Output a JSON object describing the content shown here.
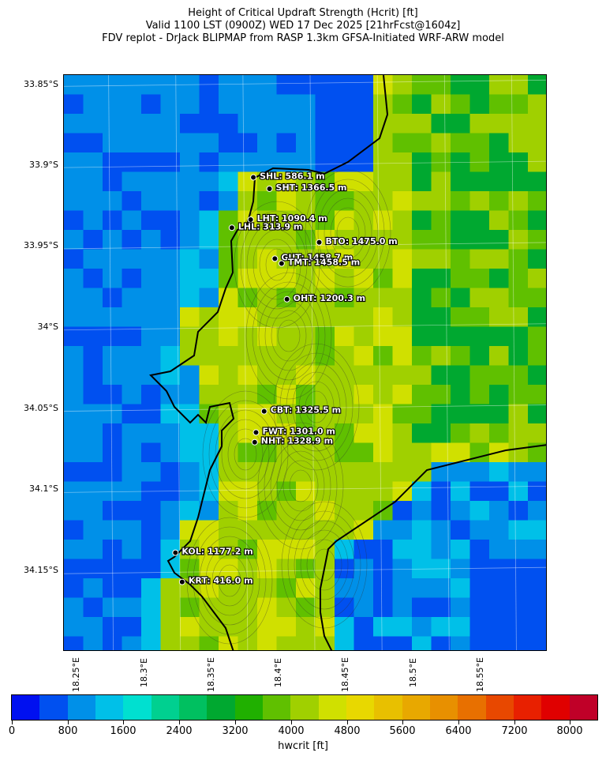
{
  "title": {
    "line1": "Height of Critical Updraft Strength (Hcrit) [ft]",
    "line2": "Valid 1100 LST (0900Z) WED 17 Dec 2025 [21hrFcst@1604z]",
    "line3": "FDV replot - DrJack BLIPMAP from RASP 1.3km GFSA-Initiated WRF-ARW model"
  },
  "axes": {
    "lat_labels": [
      "33.85°S",
      "33.9°S",
      "33.95°S",
      "34°S",
      "34.05°S",
      "34.1°S",
      "34.15°S"
    ],
    "lon_labels": [
      "18.25°E",
      "18.3°E",
      "18.35°E",
      "18.4°E",
      "18.45°E",
      "18.5°E",
      "18.55°E"
    ],
    "lat_range": [
      -34.2,
      -33.845
    ],
    "lon_range": [
      18.215,
      18.575
    ]
  },
  "stations": [
    {
      "code": "SHL",
      "value": "586.1 m",
      "label": "SHL: 586.1 m",
      "lat": -33.908,
      "lon": 18.356
    },
    {
      "code": "SHT",
      "value": "1366.5 m",
      "label": "SHT: 1366.5 m",
      "lat": -33.915,
      "lon": 18.368
    },
    {
      "code": "LHT",
      "value": "1090.4 m",
      "label": "LHT: 1090.4 m",
      "lat": -33.934,
      "lon": 18.354
    },
    {
      "code": "LHL",
      "value": "313.9 m",
      "label": "LHL: 313.9 m",
      "lat": -33.939,
      "lon": 18.34
    },
    {
      "code": "BTO",
      "value": "1475.0 m",
      "label": "BTO: 1475.0 m",
      "lat": -33.948,
      "lon": 18.405
    },
    {
      "code": "GUT",
      "value": "1458.7 m",
      "label": "GUT: 1458.7 m",
      "lat": -33.958,
      "lon": 18.372
    },
    {
      "code": "TMT",
      "value": "1458.5 m",
      "label": "TMT: 1458.5 m",
      "lat": -33.961,
      "lon": 18.377
    },
    {
      "code": "OHT",
      "value": "1200.3 m",
      "label": "OHT: 1200.3 m",
      "lat": -33.983,
      "lon": 18.381
    },
    {
      "code": "CBT",
      "value": "1325.5 m",
      "label": "CBT: 1325.5 m",
      "lat": -34.052,
      "lon": 18.364
    },
    {
      "code": "FWT",
      "value": "1301.0 m",
      "label": "FWT: 1301.0 m",
      "lat": -34.065,
      "lon": 18.358
    },
    {
      "code": "NHT",
      "value": "1328.9 m",
      "label": "NHT: 1328.9 m",
      "lat": -34.071,
      "lon": 18.357
    },
    {
      "code": "KOL",
      "value": "1177.2 m",
      "label": "KOL: 1177.2 m",
      "lat": -34.139,
      "lon": 18.298
    },
    {
      "code": "KRT",
      "value": "416.0 m",
      "label": "KRT: 416.0 m",
      "lat": -34.157,
      "lon": 18.303
    }
  ],
  "colorbar": {
    "label": "hwcrit [ft]",
    "tick_labels": [
      "0",
      "800",
      "1600",
      "2400",
      "3200",
      "4000",
      "4800",
      "5600",
      "6400",
      "7200",
      "8000"
    ],
    "min": 0,
    "max": 8400,
    "colors": [
      "#0010f0",
      "#0050f0",
      "#0090e8",
      "#00c0e8",
      "#00e0d0",
      "#00d090",
      "#00c060",
      "#00a830",
      "#20b000",
      "#60c000",
      "#a0d000",
      "#d0e000",
      "#e8d800",
      "#e8c000",
      "#e8a800",
      "#e89000",
      "#e87000",
      "#e84800",
      "#e82000",
      "#e00000",
      "#c00028"
    ]
  }
}
